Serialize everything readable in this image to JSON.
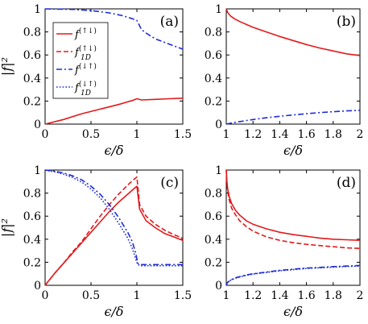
{
  "chart_data": [
    {
      "type": "line",
      "panel_label": "(a)",
      "xlabel": "ϵ/δ",
      "ylabel": "|f|²",
      "xlim": [
        0,
        1.5
      ],
      "ylim": [
        0,
        1
      ],
      "xticks": [
        "0",
        "0.5",
        "1",
        "1.5"
      ],
      "yticks": [
        "0",
        "0.2",
        "0.4",
        "0.6",
        "0.8",
        "1"
      ],
      "legend_position": "left",
      "series": [
        {
          "name": "f(↑↓)",
          "sup": "(↑↓)",
          "sub": "",
          "color": "#e31a1c",
          "style": "solid",
          "x": [
            0.0,
            0.2,
            0.4,
            0.6,
            0.8,
            0.95,
            1.0,
            1.05,
            1.2,
            1.35,
            1.5
          ],
          "y": [
            0.0,
            0.04,
            0.09,
            0.13,
            0.17,
            0.205,
            0.22,
            0.21,
            0.215,
            0.22,
            0.225
          ]
        },
        {
          "name": "f1D(↑↓)",
          "sup": "(↑↓)",
          "sub": "1D",
          "color": "#e31a1c",
          "style": "dash",
          "x": [],
          "y": []
        },
        {
          "name": "f(↓↑)",
          "sup": "(↓↑)",
          "sub": "",
          "color": "#1f2bd6",
          "style": "dashdot",
          "x": [
            0.0,
            0.3,
            0.5,
            0.7,
            0.85,
            0.95,
            1.0,
            1.05,
            1.1,
            1.2,
            1.3,
            1.4,
            1.5
          ],
          "y": [
            1.0,
            0.995,
            0.985,
            0.965,
            0.94,
            0.915,
            0.9,
            0.82,
            0.79,
            0.74,
            0.71,
            0.68,
            0.65
          ]
        },
        {
          "name": "f1D(↓↑)",
          "sup": "(↓↑)",
          "sub": "1D",
          "color": "#1f2bd6",
          "style": "dot",
          "x": [],
          "y": []
        }
      ]
    },
    {
      "type": "line",
      "panel_label": "(b)",
      "xlabel": "ϵ/δ",
      "ylabel": "",
      "xlim": [
        1,
        2
      ],
      "ylim": [
        0,
        1
      ],
      "xticks": [
        "1",
        "1.2",
        "1.4",
        "1.6",
        "1.8",
        "2"
      ],
      "yticks": [
        "0",
        "0.2",
        "0.4",
        "0.6",
        "0.8",
        "1"
      ],
      "series": [
        {
          "color": "#e31a1c",
          "style": "solid",
          "x": [
            1.0,
            1.01,
            1.03,
            1.06,
            1.1,
            1.2,
            1.3,
            1.4,
            1.5,
            1.6,
            1.7,
            1.8,
            1.9,
            2.0
          ],
          "y": [
            1.0,
            0.97,
            0.94,
            0.915,
            0.89,
            0.84,
            0.8,
            0.76,
            0.725,
            0.69,
            0.66,
            0.635,
            0.61,
            0.595
          ]
        },
        {
          "color": "#1f2bd6",
          "style": "dashdot",
          "x": [
            1.0,
            1.05,
            1.1,
            1.2,
            1.3,
            1.4,
            1.5,
            1.6,
            1.7,
            1.8,
            1.9,
            2.0
          ],
          "y": [
            0.0,
            0.012,
            0.022,
            0.04,
            0.055,
            0.068,
            0.08,
            0.09,
            0.1,
            0.108,
            0.115,
            0.12
          ]
        }
      ]
    },
    {
      "type": "line",
      "panel_label": "(c)",
      "xlabel": "ϵ/δ",
      "ylabel": "|f|²",
      "xlim": [
        0,
        1.5
      ],
      "ylim": [
        0,
        1
      ],
      "xticks": [
        "0",
        "0.5",
        "1",
        "1.5"
      ],
      "yticks": [
        "0",
        "0.2",
        "0.4",
        "0.6",
        "0.8",
        "1"
      ],
      "series": [
        {
          "color": "#e31a1c",
          "style": "solid",
          "x": [
            0.0,
            0.1,
            0.2,
            0.3,
            0.4,
            0.5,
            0.6,
            0.7,
            0.8,
            0.9,
            0.97,
            1.0,
            1.03,
            1.1,
            1.2,
            1.3,
            1.4,
            1.5
          ],
          "y": [
            0.0,
            0.1,
            0.19,
            0.28,
            0.37,
            0.46,
            0.55,
            0.64,
            0.72,
            0.79,
            0.84,
            0.86,
            0.66,
            0.56,
            0.5,
            0.45,
            0.42,
            0.39
          ]
        },
        {
          "color": "#e31a1c",
          "style": "dash",
          "x": [
            0.0,
            0.1,
            0.2,
            0.3,
            0.4,
            0.5,
            0.6,
            0.7,
            0.8,
            0.9,
            0.97,
            1.0,
            1.03,
            1.1,
            1.2,
            1.3,
            1.4,
            1.5
          ],
          "y": [
            0.0,
            0.1,
            0.19,
            0.29,
            0.38,
            0.49,
            0.6,
            0.7,
            0.79,
            0.87,
            0.92,
            0.94,
            0.7,
            0.6,
            0.53,
            0.48,
            0.44,
            0.41
          ]
        },
        {
          "color": "#1f2bd6",
          "style": "dashdot",
          "x": [
            0.0,
            0.1,
            0.2,
            0.3,
            0.4,
            0.5,
            0.6,
            0.7,
            0.8,
            0.9,
            0.95,
            0.99,
            1.01,
            1.05,
            1.2,
            1.35,
            1.5
          ],
          "y": [
            1.0,
            0.99,
            0.975,
            0.95,
            0.915,
            0.86,
            0.79,
            0.7,
            0.59,
            0.46,
            0.38,
            0.27,
            0.19,
            0.18,
            0.18,
            0.18,
            0.18
          ]
        },
        {
          "color": "#1f2bd6",
          "style": "dot",
          "x": [
            0.0,
            0.1,
            0.2,
            0.3,
            0.4,
            0.5,
            0.6,
            0.7,
            0.8,
            0.9,
            0.95,
            0.99,
            1.01,
            1.05,
            1.2,
            1.35,
            1.5
          ],
          "y": [
            1.0,
            0.985,
            0.965,
            0.935,
            0.895,
            0.835,
            0.76,
            0.66,
            0.54,
            0.41,
            0.32,
            0.22,
            0.18,
            0.17,
            0.17,
            0.17,
            0.17
          ]
        }
      ]
    },
    {
      "type": "line",
      "panel_label": "(d)",
      "xlabel": "ϵ/δ",
      "ylabel": "",
      "xlim": [
        1,
        2
      ],
      "ylim": [
        0,
        1
      ],
      "xticks": [
        "1",
        "1.2",
        "1.4",
        "1.6",
        "1.8",
        "2"
      ],
      "yticks": [
        "0",
        "0.2",
        "0.4",
        "0.6",
        "0.8",
        "1"
      ],
      "series": [
        {
          "color": "#e31a1c",
          "style": "solid",
          "x": [
            1.0,
            1.005,
            1.01,
            1.02,
            1.04,
            1.07,
            1.1,
            1.15,
            1.2,
            1.3,
            1.4,
            1.5,
            1.6,
            1.7,
            1.8,
            1.9,
            2.0
          ],
          "y": [
            1.0,
            0.9,
            0.84,
            0.78,
            0.71,
            0.65,
            0.61,
            0.56,
            0.53,
            0.49,
            0.46,
            0.44,
            0.425,
            0.41,
            0.4,
            0.395,
            0.39
          ]
        },
        {
          "color": "#e31a1c",
          "style": "dash",
          "x": [
            1.0,
            1.005,
            1.01,
            1.02,
            1.04,
            1.07,
            1.1,
            1.15,
            1.2,
            1.3,
            1.4,
            1.5,
            1.6,
            1.7,
            1.8,
            1.9,
            2.0
          ],
          "y": [
            1.0,
            0.88,
            0.82,
            0.75,
            0.67,
            0.61,
            0.56,
            0.51,
            0.47,
            0.42,
            0.39,
            0.37,
            0.355,
            0.345,
            0.335,
            0.325,
            0.32
          ]
        },
        {
          "color": "#1f2bd6",
          "style": "dashdot",
          "x": [
            1.0,
            1.005,
            1.01,
            1.02,
            1.04,
            1.07,
            1.1,
            1.15,
            1.2,
            1.3,
            1.4,
            1.5,
            1.6,
            1.7,
            1.8,
            1.9,
            2.0
          ],
          "y": [
            0.0,
            0.015,
            0.025,
            0.035,
            0.05,
            0.065,
            0.075,
            0.09,
            0.1,
            0.115,
            0.13,
            0.14,
            0.15,
            0.155,
            0.162,
            0.167,
            0.172
          ]
        },
        {
          "color": "#1f2bd6",
          "style": "dot",
          "x": [
            1.0,
            1.005,
            1.01,
            1.02,
            1.04,
            1.07,
            1.1,
            1.15,
            1.2,
            1.3,
            1.4,
            1.5,
            1.6,
            1.7,
            1.8,
            1.9,
            2.0
          ],
          "y": [
            0.0,
            0.014,
            0.024,
            0.034,
            0.048,
            0.062,
            0.072,
            0.087,
            0.097,
            0.112,
            0.126,
            0.136,
            0.146,
            0.152,
            0.158,
            0.163,
            0.168
          ]
        }
      ]
    }
  ]
}
